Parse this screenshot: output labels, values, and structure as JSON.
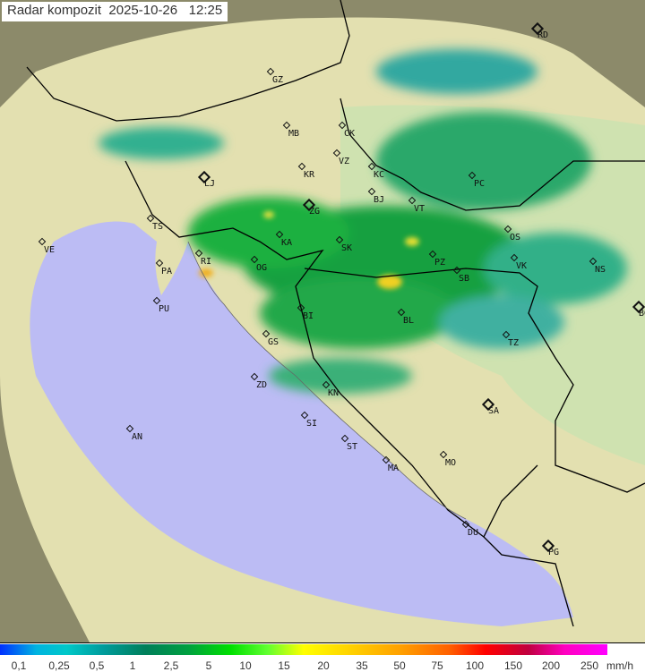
{
  "header": {
    "title": "Radar kompozit",
    "date": "2025-10-26",
    "time": "12:25"
  },
  "map": {
    "colors": {
      "sea": "#bcbcf4",
      "land": "#e3e0b0",
      "lowland": "#c6dfa8",
      "outside": "#8c8a6a",
      "border": "#000000"
    },
    "cities": [
      {
        "code": "RD",
        "capital": true
      },
      {
        "code": "GZ"
      },
      {
        "code": "MB"
      },
      {
        "code": "CK"
      },
      {
        "code": "VZ"
      },
      {
        "code": "KR"
      },
      {
        "code": "KC"
      },
      {
        "code": "LJ",
        "capital": true
      },
      {
        "code": "BJ"
      },
      {
        "code": "PC"
      },
      {
        "code": "VT"
      },
      {
        "code": "ZG",
        "capital": true
      },
      {
        "code": "TS"
      },
      {
        "code": "VE"
      },
      {
        "code": "RI"
      },
      {
        "code": "KA"
      },
      {
        "code": "SK"
      },
      {
        "code": "OS"
      },
      {
        "code": "PA"
      },
      {
        "code": "PZ"
      },
      {
        "code": "SB"
      },
      {
        "code": "VK"
      },
      {
        "code": "NS"
      },
      {
        "code": "OG"
      },
      {
        "code": "PU"
      },
      {
        "code": "BI"
      },
      {
        "code": "BL"
      },
      {
        "code": "BG",
        "capital": true
      },
      {
        "code": "GS"
      },
      {
        "code": "TZ"
      },
      {
        "code": "ZD"
      },
      {
        "code": "KN"
      },
      {
        "code": "SA",
        "capital": true
      },
      {
        "code": "SI"
      },
      {
        "code": "AN"
      },
      {
        "code": "ST"
      },
      {
        "code": "MA"
      },
      {
        "code": "MO"
      },
      {
        "code": "DU"
      },
      {
        "code": "PG",
        "capital": true
      }
    ]
  },
  "legend": {
    "unit": "mm/h",
    "ticks": [
      "0,1",
      "0,25",
      "0,5",
      "1",
      "2,5",
      "5",
      "10",
      "15",
      "20",
      "35",
      "50",
      "75",
      "100",
      "150",
      "200",
      "250"
    ]
  }
}
